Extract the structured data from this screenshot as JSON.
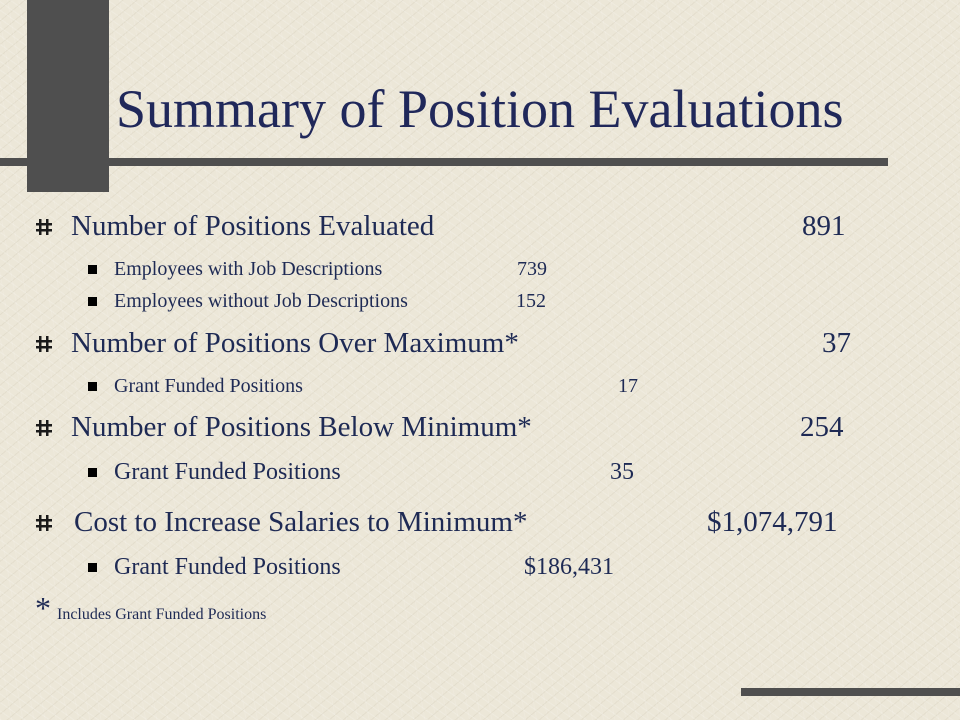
{
  "slide": {
    "title": "Summary of Position Evaluations",
    "items": [
      {
        "label": "Number of Positions Evaluated",
        "value": "891",
        "sub": [
          {
            "label": "Employees with Job Descriptions",
            "value": "739"
          },
          {
            "label": "Employees without Job Descriptions",
            "value": "152"
          }
        ]
      },
      {
        "label": "Number of Positions Over Maximum*",
        "value": "37",
        "sub": [
          {
            "label": "Grant Funded Positions",
            "value": "17"
          }
        ]
      },
      {
        "label": "Number of Positions Below Minimum*",
        "value": "254",
        "sub": [
          {
            "label": "Grant Funded Positions",
            "value": "35"
          }
        ]
      },
      {
        "label": "Cost to Increase Salaries to Minimum*",
        "value": "$1,074,791",
        "sub": [
          {
            "label": "Grant Funded Positions",
            "value": "$186,431"
          }
        ]
      }
    ],
    "footnote": {
      "symbol": "*",
      "text": "Includes Grant Funded Positions"
    }
  },
  "icons": {
    "level1_bullet": "hash-bullet-icon",
    "level2_bullet": "square-bullet-icon"
  },
  "colors": {
    "text": "#1e2a54",
    "decor": "#4f4f4f",
    "background": "#ece7d8"
  }
}
